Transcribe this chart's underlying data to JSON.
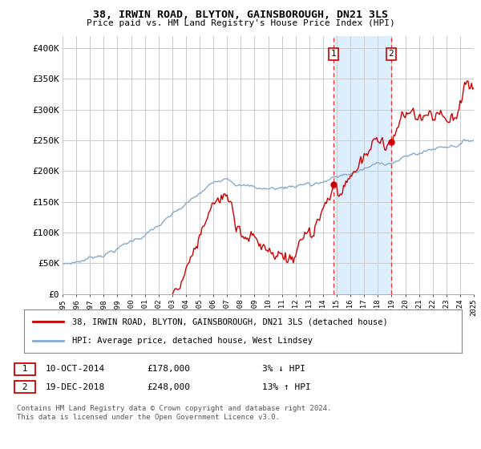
{
  "title": "38, IRWIN ROAD, BLYTON, GAINSBOROUGH, DN21 3LS",
  "subtitle": "Price paid vs. HM Land Registry's House Price Index (HPI)",
  "ylabel_ticks": [
    "£0",
    "£50K",
    "£100K",
    "£150K",
    "£200K",
    "£250K",
    "£300K",
    "£350K",
    "£400K"
  ],
  "ylabel_values": [
    0,
    50000,
    100000,
    150000,
    200000,
    250000,
    300000,
    350000,
    400000
  ],
  "ylim": [
    0,
    420000
  ],
  "sale1_x": 19.78,
  "sale1_price": 178000,
  "sale2_x": 23.97,
  "sale2_price": 248000,
  "sale1_date_str": "10-OCT-2014",
  "sale1_price_str": "£178,000",
  "sale1_hpi_str": "3% ↓ HPI",
  "sale2_date_str": "19-DEC-2018",
  "sale2_price_str": "£248,000",
  "sale2_hpi_str": "13% ↑ HPI",
  "highlight_color": "#ddeeff",
  "red_line_color": "#cc0000",
  "blue_line_color": "#88aacc",
  "grid_color": "#cccccc",
  "background_color": "#ffffff",
  "legend_label_red": "38, IRWIN ROAD, BLYTON, GAINSBOROUGH, DN21 3LS (detached house)",
  "legend_label_blue": "HPI: Average price, detached house, West Lindsey",
  "footer": "Contains HM Land Registry data © Crown copyright and database right 2024.\nThis data is licensed under the Open Government Licence v3.0.",
  "years": [
    "1995",
    "1996",
    "1997",
    "1998",
    "1999",
    "2000",
    "2001",
    "2002",
    "2003",
    "2004",
    "2005",
    "2006",
    "2007",
    "2008",
    "2009",
    "2010",
    "2011",
    "2012",
    "2013",
    "2014",
    "2015",
    "2016",
    "2017",
    "2018",
    "2019",
    "2020",
    "2021",
    "2022",
    "2023",
    "2024",
    "2025"
  ]
}
